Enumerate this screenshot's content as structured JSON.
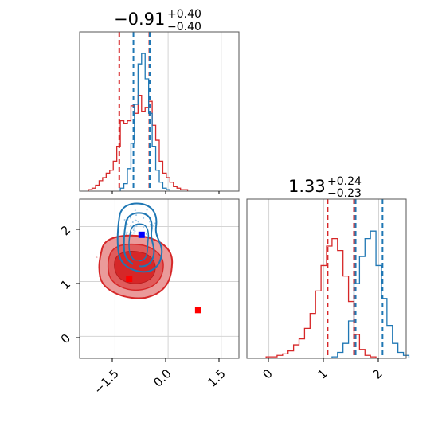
{
  "colors": {
    "red": "#d62728",
    "blue": "#1f77b4",
    "blue_marker": "#0000ff",
    "red_marker": "#ff0000"
  },
  "titles": {
    "p1": {
      "value": "−0.91",
      "sup": "+0.40",
      "sub": "−0.40"
    },
    "p2": {
      "value": "1.33",
      "sup": "+0.24",
      "sub": "−0.23"
    }
  },
  "ticks": {
    "x_param1": [
      "−1.5",
      "0.0",
      "1.5"
    ],
    "y_param2": [
      "0",
      "1",
      "2"
    ],
    "x_param2": [
      "0",
      "1",
      "2"
    ]
  },
  "chart_data": [
    {
      "type": "histogram",
      "panel": "top-left",
      "xlim": [
        -2.5,
        2.0
      ],
      "grid": true,
      "quantile_lines": {
        "red": [
          -1.38,
          -0.53
        ],
        "blue": [
          -0.98,
          -0.52
        ]
      },
      "series": [
        {
          "color": "red",
          "x": [
            -2.2,
            -2.1,
            -2.0,
            -1.9,
            -1.8,
            -1.7,
            -1.6,
            -1.5,
            -1.4,
            -1.3,
            -1.2,
            -1.1,
            -1.0,
            -0.9,
            -0.8,
            -0.7,
            -0.6,
            -0.5,
            -0.4,
            -0.3,
            -0.2,
            -0.1,
            0.0,
            0.1,
            0.2,
            0.3,
            0.4,
            0.5
          ],
          "counts": [
            0.01,
            0.02,
            0.04,
            0.07,
            0.09,
            0.12,
            0.14,
            0.2,
            0.3,
            0.47,
            0.45,
            0.47,
            0.57,
            0.52,
            0.64,
            0.53,
            0.56,
            0.6,
            0.44,
            0.34,
            0.2,
            0.12,
            0.09,
            0.06,
            0.03,
            0.02,
            0.01,
            0.01
          ]
        },
        {
          "color": "blue",
          "x": [
            -1.3,
            -1.2,
            -1.1,
            -1.0,
            -0.9,
            -0.8,
            -0.7,
            -0.6,
            -0.5,
            -0.4,
            -0.3,
            -0.2,
            -0.1,
            0.0
          ],
          "counts": [
            0.02,
            0.05,
            0.15,
            0.32,
            0.58,
            0.85,
            0.92,
            0.75,
            0.52,
            0.3,
            0.14,
            0.06,
            0.02,
            0.01
          ]
        }
      ]
    },
    {
      "type": "contour",
      "panel": "bottom-left",
      "xlim": [
        -2.5,
        2.0
      ],
      "ylim": [
        -0.4,
        2.5
      ],
      "grid": true,
      "markers": [
        {
          "color": "blue_marker",
          "x": -0.75,
          "y": 1.85
        },
        {
          "color": "red_marker",
          "x": -1.1,
          "y": 1.05
        },
        {
          "color": "red_marker",
          "x": 0.85,
          "y": 0.48
        },
        {
          "color": "red",
          "x": -0.9,
          "y": 1.32
        }
      ]
    },
    {
      "type": "histogram",
      "panel": "bottom-right",
      "xlim": [
        -0.4,
        2.5
      ],
      "grid": true,
      "quantile_lines": {
        "red": [
          1.07,
          1.55
        ],
        "blue": [
          1.58,
          2.07
        ]
      },
      "series": [
        {
          "color": "red",
          "x": [
            0.0,
            0.1,
            0.2,
            0.3,
            0.4,
            0.5,
            0.6,
            0.7,
            0.8,
            0.9,
            1.0,
            1.1,
            1.2,
            1.3,
            1.4,
            1.5,
            1.6,
            1.7,
            1.8,
            1.9
          ],
          "counts": [
            0.01,
            0.01,
            0.02,
            0.03,
            0.05,
            0.09,
            0.13,
            0.2,
            0.3,
            0.45,
            0.62,
            0.75,
            0.8,
            0.72,
            0.55,
            0.38,
            0.16,
            0.06,
            0.02,
            0.01
          ]
        },
        {
          "color": "blue",
          "x": [
            1.2,
            1.3,
            1.4,
            1.5,
            1.6,
            1.7,
            1.8,
            1.9,
            2.0,
            2.1,
            2.2,
            2.3,
            2.4,
            2.5
          ],
          "counts": [
            0.01,
            0.04,
            0.1,
            0.25,
            0.5,
            0.68,
            0.8,
            0.85,
            0.62,
            0.4,
            0.22,
            0.1,
            0.04,
            0.02
          ]
        }
      ]
    }
  ]
}
